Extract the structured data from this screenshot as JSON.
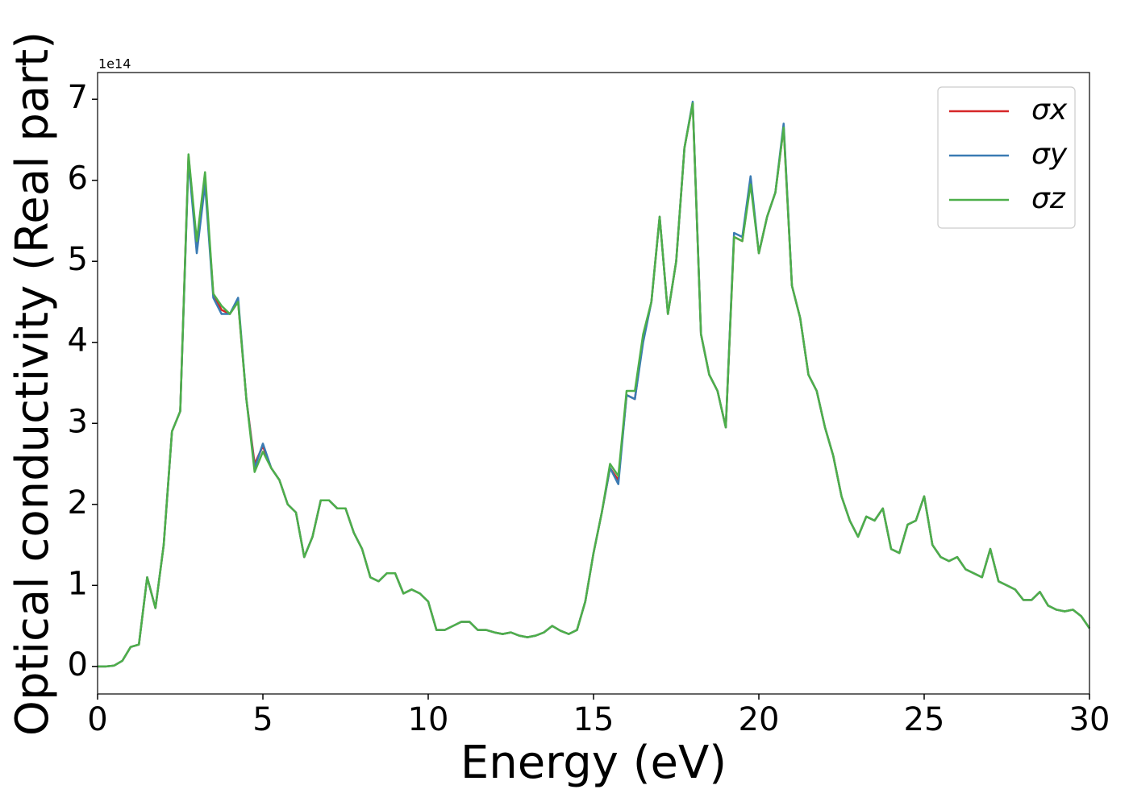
{
  "chart_data": {
    "type": "line",
    "xlabel": "Energy (eV)",
    "ylabel": "Optical conductivity (Real part)",
    "y_offset_label": "1e14",
    "x": [
      0,
      0.25,
      0.5,
      0.75,
      1,
      1.25,
      1.5,
      1.75,
      2,
      2.25,
      2.5,
      2.75,
      3,
      3.25,
      3.5,
      3.75,
      4,
      4.25,
      4.5,
      4.75,
      5,
      5.25,
      5.5,
      5.75,
      6,
      6.25,
      6.5,
      6.75,
      7,
      7.25,
      7.5,
      7.75,
      8,
      8.25,
      8.5,
      8.75,
      9,
      9.25,
      9.5,
      9.75,
      10,
      10.25,
      10.5,
      10.75,
      11,
      11.25,
      11.5,
      11.75,
      12,
      12.25,
      12.5,
      12.75,
      13,
      13.25,
      13.5,
      13.75,
      14,
      14.25,
      14.5,
      14.75,
      15,
      15.25,
      15.5,
      15.75,
      16,
      16.25,
      16.5,
      16.75,
      17,
      17.25,
      17.5,
      17.75,
      18,
      18.25,
      18.5,
      18.75,
      19,
      19.25,
      19.5,
      19.75,
      20,
      20.25,
      20.5,
      20.75,
      21,
      21.25,
      21.5,
      21.75,
      22,
      22.25,
      22.5,
      22.75,
      23,
      23.25,
      23.5,
      23.75,
      24,
      24.25,
      24.5,
      24.75,
      25,
      25.25,
      25.5,
      25.75,
      26,
      26.25,
      26.5,
      26.75,
      27,
      27.25,
      27.5,
      27.75,
      28,
      28.25,
      28.5,
      28.75,
      29,
      29.25,
      29.5,
      29.75,
      30
    ],
    "series": [
      {
        "name": "σx",
        "color": "#d62728",
        "values": [
          0,
          0,
          0.01,
          0.07,
          0.24,
          0.27,
          1.1,
          0.72,
          1.5,
          2.9,
          3.15,
          6.3,
          5.2,
          6.0,
          4.6,
          4.4,
          4.35,
          4.5,
          3.3,
          2.5,
          2.72,
          2.45,
          2.3,
          2.0,
          1.9,
          1.35,
          1.6,
          2.05,
          2.05,
          1.95,
          1.95,
          1.65,
          1.45,
          1.1,
          1.05,
          1.15,
          1.15,
          0.9,
          0.95,
          0.9,
          0.8,
          0.45,
          0.45,
          0.5,
          0.55,
          0.55,
          0.45,
          0.45,
          0.42,
          0.4,
          0.42,
          0.38,
          0.36,
          0.38,
          0.42,
          0.5,
          0.44,
          0.4,
          0.45,
          0.8,
          1.4,
          1.9,
          2.45,
          2.3,
          3.35,
          3.3,
          4.05,
          4.5,
          5.55,
          4.35,
          5.0,
          6.4,
          6.95,
          4.1,
          3.6,
          3.4,
          2.95,
          5.3,
          5.25,
          6.0,
          5.1,
          5.55,
          5.85,
          6.65,
          4.7,
          4.3,
          3.6,
          3.4,
          2.95,
          2.6,
          2.1,
          1.8,
          1.6,
          1.85,
          1.8,
          1.95,
          1.45,
          1.4,
          1.75,
          1.8,
          2.1,
          1.5,
          1.35,
          1.3,
          1.35,
          1.2,
          1.15,
          1.1,
          1.45,
          1.05,
          1.0,
          0.95,
          0.82,
          0.82,
          0.92,
          0.75,
          0.7,
          0.68,
          0.7,
          0.62,
          0.47
        ]
      },
      {
        "name": "σy",
        "color": "#3a7bb3",
        "values": [
          0,
          0,
          0.01,
          0.07,
          0.24,
          0.27,
          1.1,
          0.72,
          1.5,
          2.9,
          3.15,
          6.25,
          5.1,
          5.95,
          4.55,
          4.35,
          4.35,
          4.55,
          3.3,
          2.45,
          2.75,
          2.45,
          2.3,
          2.0,
          1.9,
          1.35,
          1.6,
          2.05,
          2.05,
          1.95,
          1.95,
          1.65,
          1.45,
          1.1,
          1.05,
          1.15,
          1.15,
          0.9,
          0.95,
          0.9,
          0.8,
          0.45,
          0.45,
          0.5,
          0.55,
          0.55,
          0.45,
          0.45,
          0.42,
          0.4,
          0.42,
          0.38,
          0.36,
          0.38,
          0.42,
          0.5,
          0.44,
          0.4,
          0.45,
          0.8,
          1.4,
          1.9,
          2.45,
          2.25,
          3.35,
          3.3,
          4.0,
          4.5,
          5.55,
          4.35,
          5.0,
          6.4,
          6.97,
          4.1,
          3.6,
          3.4,
          2.95,
          5.35,
          5.3,
          6.05,
          5.1,
          5.55,
          5.85,
          6.7,
          4.7,
          4.3,
          3.6,
          3.4,
          2.95,
          2.6,
          2.1,
          1.8,
          1.6,
          1.85,
          1.8,
          1.95,
          1.45,
          1.4,
          1.75,
          1.8,
          2.1,
          1.5,
          1.35,
          1.3,
          1.35,
          1.2,
          1.15,
          1.1,
          1.45,
          1.05,
          1.0,
          0.95,
          0.82,
          0.82,
          0.92,
          0.75,
          0.7,
          0.68,
          0.7,
          0.62,
          0.47
        ]
      },
      {
        "name": "σz",
        "color": "#4daf4a",
        "values": [
          0,
          0,
          0.01,
          0.07,
          0.24,
          0.27,
          1.1,
          0.72,
          1.5,
          2.9,
          3.15,
          6.32,
          5.25,
          6.1,
          4.6,
          4.45,
          4.35,
          4.5,
          3.3,
          2.4,
          2.65,
          2.45,
          2.3,
          2.0,
          1.9,
          1.35,
          1.6,
          2.05,
          2.05,
          1.95,
          1.95,
          1.65,
          1.45,
          1.1,
          1.05,
          1.15,
          1.15,
          0.9,
          0.95,
          0.9,
          0.8,
          0.45,
          0.45,
          0.5,
          0.55,
          0.55,
          0.45,
          0.45,
          0.42,
          0.4,
          0.42,
          0.38,
          0.36,
          0.38,
          0.42,
          0.5,
          0.44,
          0.4,
          0.45,
          0.8,
          1.4,
          1.9,
          2.5,
          2.35,
          3.4,
          3.4,
          4.1,
          4.5,
          5.55,
          4.35,
          5.0,
          6.4,
          6.95,
          4.1,
          3.6,
          3.4,
          2.95,
          5.3,
          5.25,
          5.95,
          5.1,
          5.55,
          5.85,
          6.65,
          4.7,
          4.3,
          3.6,
          3.4,
          2.95,
          2.6,
          2.1,
          1.8,
          1.6,
          1.85,
          1.8,
          1.95,
          1.45,
          1.4,
          1.75,
          1.8,
          2.1,
          1.5,
          1.35,
          1.3,
          1.35,
          1.2,
          1.15,
          1.1,
          1.45,
          1.05,
          1.0,
          0.95,
          0.82,
          0.82,
          0.92,
          0.75,
          0.7,
          0.68,
          0.7,
          0.62,
          0.47
        ]
      }
    ],
    "xlim": [
      0,
      30
    ],
    "xticks": [
      0,
      5,
      10,
      15,
      20,
      25,
      30
    ],
    "ylim": [
      -0.34,
      7.33
    ],
    "yticks": [
      0,
      1,
      2,
      3,
      4,
      5,
      6,
      7
    ],
    "grid": false,
    "legend": "upper right"
  }
}
